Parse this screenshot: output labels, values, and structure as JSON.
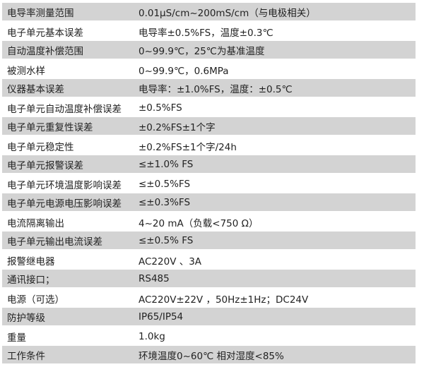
{
  "specs": [
    {
      "label": "电导率测量范围",
      "value": "0.01μS/cm~200mS/cm（与电极相关）"
    },
    {
      "label": "电子单元基本误差",
      "value": "电导率±0.5%FS，温度±0.3℃"
    },
    {
      "label": "自动温度补偿范围",
      "value": "0~99.9℃，25℃为基准温度"
    },
    {
      "label": "被测水样",
      "value": "0~99.9℃，0.6MPa"
    },
    {
      "label": "仪器基本误差",
      "value": "电导率：±1.0%FS，温度：±0.5℃"
    },
    {
      "label": "电子单元自动温度补偿误差",
      "value": "±0.5%FS"
    },
    {
      "label": "电子单元重复性误差",
      "value": "±0.2%FS±1个字"
    },
    {
      "label": "电子单元稳定性",
      "value": "±0.2%FS±1个字/24h"
    },
    {
      "label": "电子单元报警误差",
      "value": "≤±1.0% FS"
    },
    {
      "label": "电子单元环境温度影响误差",
      "value": "≤±0.5%FS"
    },
    {
      "label": "电子单元电源电压影响误差",
      "value": "≤±0.3%FS"
    },
    {
      "label": "电流隔离输出",
      "value": "4~20 mA（负载<750 Ω）"
    },
    {
      "label": "电子单元输出电流误差",
      "value": "≤±0.5% FS"
    },
    {
      "label": "报警继电器",
      "value": "AC220V 、3A"
    },
    {
      "label": "通讯接口；",
      "value": "RS485"
    },
    {
      "label": "电源（可选）",
      "value": "AC220V±22V ，50Hz±1Hz；DC24V"
    },
    {
      "label": "防护等级",
      "value": "IP65/IP54"
    },
    {
      "label": "重量",
      "value": "1.0kg"
    },
    {
      "label": "工作条件",
      "value": "环境温度0~60℃ 相对湿度<85%"
    }
  ]
}
